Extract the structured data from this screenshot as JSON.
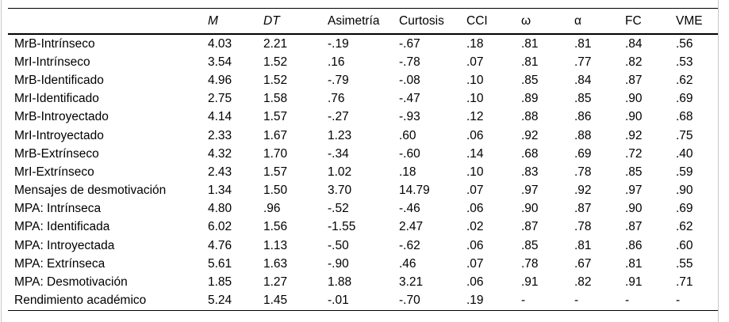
{
  "colors": {
    "background": "#ffffff",
    "text": "#000000",
    "rule": "#000000",
    "clip_edge": "#c8c8c8"
  },
  "table": {
    "columns": [
      {
        "label": "",
        "italic": false
      },
      {
        "label": "M",
        "italic": true
      },
      {
        "label": "DT",
        "italic": true
      },
      {
        "label": "Asimetría",
        "italic": false
      },
      {
        "label": "Curtosis",
        "italic": false
      },
      {
        "label": "CCI",
        "italic": false
      },
      {
        "label": "ω",
        "italic": false
      },
      {
        "label": "α",
        "italic": false
      },
      {
        "label": "FC",
        "italic": false
      },
      {
        "label": "VME",
        "italic": false
      }
    ],
    "rows": [
      {
        "label": "MrB-Intrínseco",
        "values": [
          "4.03",
          "2.21",
          "-.19",
          "-.67",
          ".18",
          ".81",
          ".81",
          ".84",
          ".56"
        ]
      },
      {
        "label": "MrI-Intrínseco",
        "values": [
          "3.54",
          "1.52",
          ".16",
          "-.78",
          ".07",
          ".81",
          ".77",
          ".82",
          ".53"
        ]
      },
      {
        "label": "MrB-Identificado",
        "values": [
          "4.96",
          "1.52",
          "-.79",
          "-.08",
          ".10",
          ".85",
          ".84",
          ".87",
          ".62"
        ]
      },
      {
        "label": "MrI-Identificado",
        "values": [
          "2.75",
          "1.58",
          ".76",
          "-.47",
          ".10",
          ".89",
          ".85",
          ".90",
          ".69"
        ]
      },
      {
        "label": "MrB-Introyectado",
        "values": [
          "4.14",
          "1.57",
          "-.27",
          "-.93",
          ".12",
          ".88",
          ".86",
          ".90",
          ".68"
        ]
      },
      {
        "label": "MrI-Introyectado",
        "values": [
          "2.33",
          "1.67",
          "1.23",
          ".60",
          ".06",
          ".92",
          ".88",
          ".92",
          ".75"
        ]
      },
      {
        "label": "MrB-Extrínseco",
        "values": [
          "4.32",
          "1.70",
          "-.34",
          "-.60",
          ".14",
          ".68",
          ".69",
          ".72",
          ".40"
        ]
      },
      {
        "label": "MrI-Extrínseco",
        "values": [
          "2.43",
          "1.57",
          "1.02",
          ".18",
          ".10",
          ".83",
          ".78",
          ".85",
          ".59"
        ]
      },
      {
        "label": "Mensajes de desmotivación",
        "values": [
          "1.34",
          "1.50",
          "3.70",
          "14.79",
          ".07",
          ".97",
          ".92",
          ".97",
          ".90"
        ]
      },
      {
        "label": "MPA: Intrínseca",
        "values": [
          "4.80",
          ".96",
          "-.52",
          "-.46",
          ".06",
          ".90",
          ".87",
          ".90",
          ".69"
        ]
      },
      {
        "label": "MPA: Identificada",
        "values": [
          "6.02",
          "1.56",
          "-1.55",
          "2.47",
          ".02",
          ".87",
          ".78",
          ".87",
          ".62"
        ]
      },
      {
        "label": "MPA: Introyectada",
        "values": [
          "4.76",
          "1.13",
          "-.50",
          "-.62",
          ".06",
          ".85",
          ".81",
          ".86",
          ".60"
        ]
      },
      {
        "label": "MPA: Extrínseca",
        "values": [
          "5.61",
          "1.63",
          "-.90",
          ".46",
          ".07",
          ".78",
          ".67",
          ".81",
          ".55"
        ]
      },
      {
        "label": "MPA: Desmotivación",
        "values": [
          "1.85",
          "1.27",
          "1.88",
          "3.21",
          ".06",
          ".91",
          ".82",
          ".91",
          ".71"
        ]
      },
      {
        "label": "Rendimiento académico",
        "values": [
          "5.24",
          "1.45",
          "-.01",
          "-.70",
          ".19",
          "-",
          "-",
          "-",
          "-"
        ]
      }
    ]
  }
}
